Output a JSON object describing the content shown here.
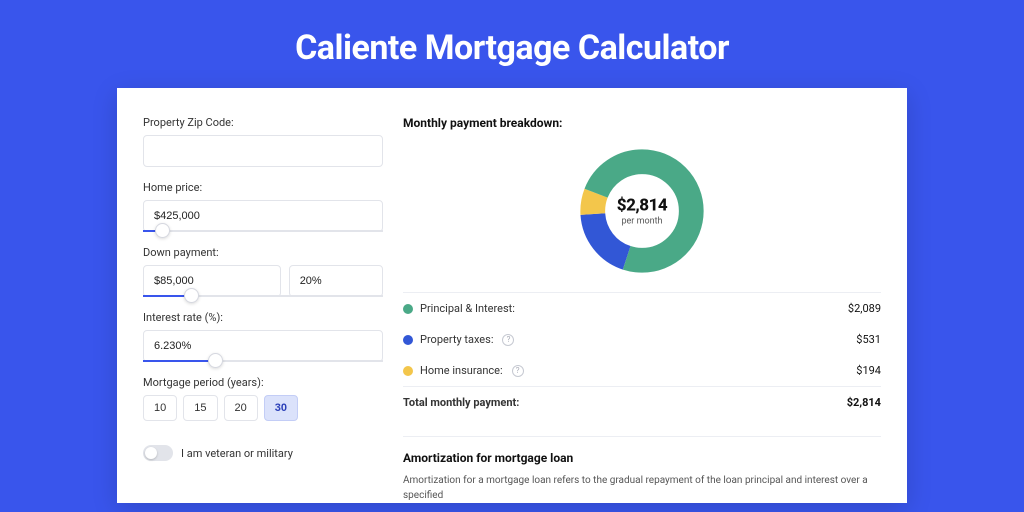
{
  "title": "Caliente Mortgage Calculator",
  "form": {
    "zip_label": "Property Zip Code:",
    "zip_value": "",
    "home_price_label": "Home price:",
    "home_price_value": "$425,000",
    "home_price_slider_pct": 8,
    "down_label": "Down payment:",
    "down_value": "$85,000",
    "down_pct": "20%",
    "down_slider_pct": 20,
    "rate_label": "Interest rate (%):",
    "rate_value": "6.230%",
    "rate_slider_pct": 30,
    "period_label": "Mortgage period (years):",
    "periods": [
      "10",
      "15",
      "20",
      "30"
    ],
    "period_selected": "30",
    "veteran_label": "I am veteran or military",
    "veteran_on": false
  },
  "breakdown": {
    "title": "Monthly payment breakdown:",
    "center_value": "$2,814",
    "center_sub": "per month",
    "segments": [
      {
        "key": "principal",
        "color": "#4aa987",
        "pct": 74.2,
        "label": "Principal & Interest:",
        "amount": "$2,089",
        "info": false
      },
      {
        "key": "taxes",
        "color": "#3257d6",
        "pct": 18.9,
        "label": "Property taxes:",
        "amount": "$531",
        "info": true
      },
      {
        "key": "insurance",
        "color": "#f3c64b",
        "pct": 6.9,
        "label": "Home insurance:",
        "amount": "$194",
        "info": true
      }
    ],
    "total_label": "Total monthly payment:",
    "total_amount": "$2,814"
  },
  "amortization": {
    "title": "Amortization for mortgage loan",
    "text": "Amortization for a mortgage loan refers to the gradual repayment of the loan principal and interest over a specified"
  },
  "colors": {
    "page_bg": "#3955ec",
    "card_bg": "#ffffff",
    "border": "#e2e4ea",
    "text": "#333333"
  }
}
